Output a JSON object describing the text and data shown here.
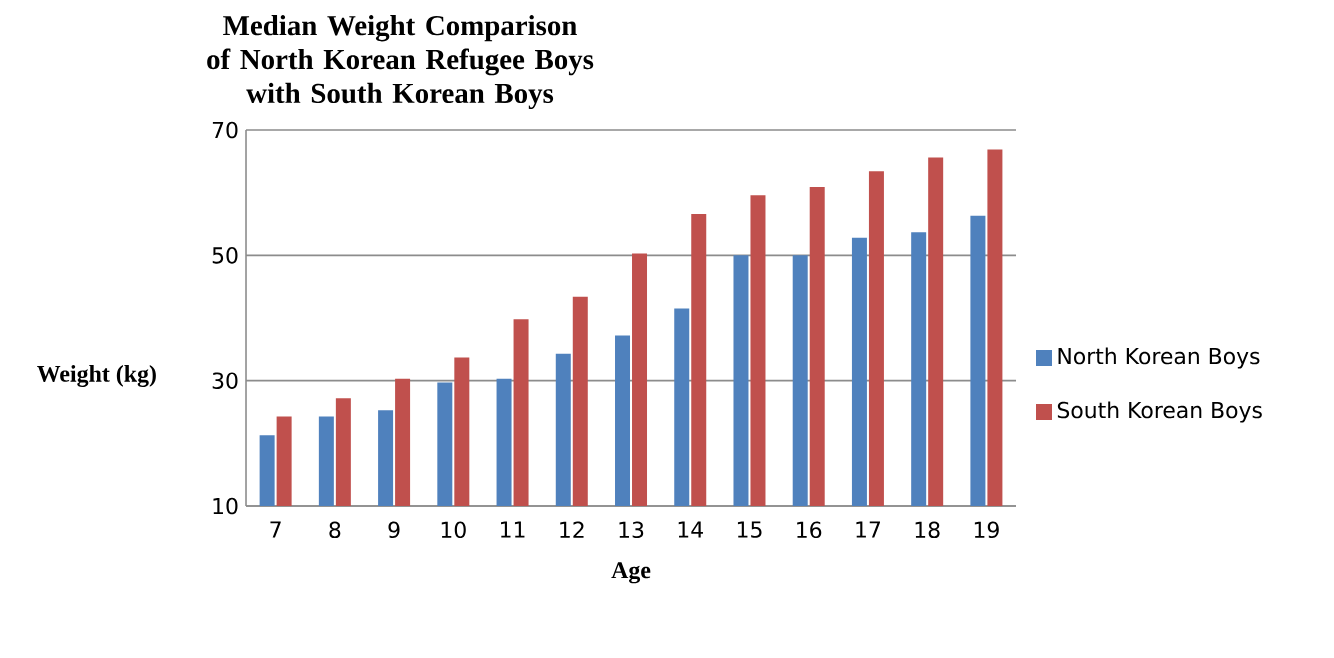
{
  "chart_data": {
    "type": "bar",
    "title": "Median Weight Comparison of North Korean Refugee Boys\nwith South Korean Boys",
    "xlabel": "Age",
    "ylabel": "Weight (kg)",
    "categories": [
      "7",
      "8",
      "9",
      "10",
      "11",
      "12",
      "13",
      "14",
      "15",
      "16",
      "17",
      "18",
      "19"
    ],
    "series": [
      {
        "name": "North Korean Boys",
        "color": "#4f81bd",
        "values": [
          21.3,
          24.3,
          25.3,
          29.7,
          30.3,
          34.3,
          37.2,
          41.5,
          50,
          50,
          52.8,
          53.7,
          56.3
        ]
      },
      {
        "name": "South Korean Boys",
        "color": "#c0504d",
        "values": [
          24.3,
          27.2,
          30.3,
          33.7,
          39.8,
          43.4,
          50.3,
          56.6,
          59.6,
          60.9,
          63.4,
          65.6,
          66.9
        ]
      }
    ],
    "ylim": [
      10,
      70
    ],
    "yticks": [
      10,
      30,
      50,
      70
    ],
    "grid": "y",
    "legend": "right"
  }
}
